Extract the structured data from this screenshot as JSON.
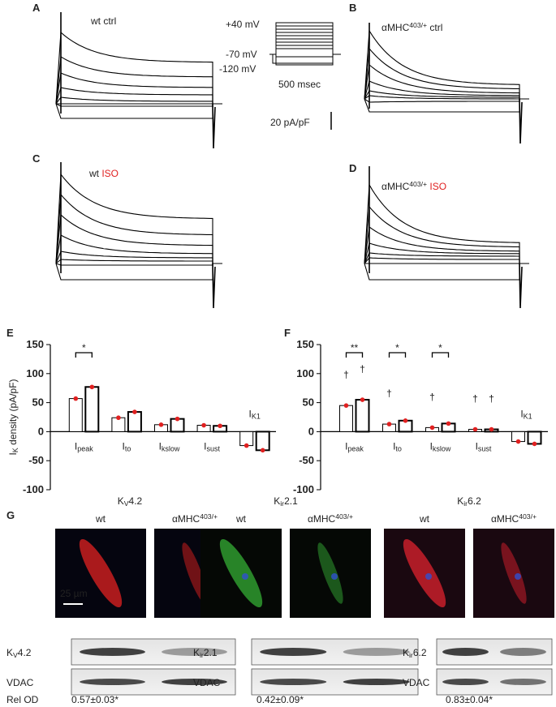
{
  "panel_a": {
    "letter": "A",
    "label": [
      "wt ctrl"
    ]
  },
  "panel_b": {
    "letter": "B",
    "label": [
      "αMHC",
      "403/+",
      " ctrl"
    ]
  },
  "panel_c": {
    "letter": "C",
    "label": [
      "wt ",
      "ISO"
    ]
  },
  "panel_d": {
    "letter": "D",
    "label": [
      "αMHC",
      "403/+",
      " ISO"
    ]
  },
  "protocol": {
    "top": "+40 mV",
    "hold": "-70 mV",
    "bottom": "-120 mV",
    "duration": "500 msec",
    "scale": "20 pA/pF"
  },
  "chart_data": [
    {
      "type": "bar",
      "letter": "E",
      "ylabel": "IK density (pA/pF)",
      "categories": [
        "Ipeak",
        "Ito",
        "Ikslow",
        "Isust",
        "IK1"
      ],
      "series": [
        {
          "color": "#ffffff",
          "values": [
            57,
            24,
            12,
            11,
            -24
          ]
        },
        {
          "color": "#ffffff",
          "values": [
            77,
            34,
            22,
            10,
            -32
          ]
        }
      ],
      "ylim": [
        -100,
        150
      ],
      "yticks": [
        -100,
        -50,
        0,
        50,
        100,
        150
      ],
      "brackets": [
        {
          "text": "*",
          "category": 0
        }
      ],
      "daggers": []
    },
    {
      "type": "bar",
      "letter": "F",
      "categories": [
        "Ipeak",
        "Ito",
        "Ikslow",
        "Isust",
        "IK1"
      ],
      "series": [
        {
          "color": "#ffffff",
          "values": [
            45,
            13,
            7,
            4,
            -17
          ]
        },
        {
          "color": "#ffffff",
          "values": [
            55,
            19,
            14,
            4,
            -21
          ]
        }
      ],
      "ylim": [
        -100,
        150
      ],
      "yticks": [
        -100,
        -50,
        0,
        50,
        100,
        150
      ],
      "brackets": [
        {
          "text": "**",
          "category": 0
        },
        {
          "text": "*",
          "category": 1
        },
        {
          "text": "*",
          "category": 2
        }
      ],
      "daggers": [
        {
          "text": "†",
          "category": 0,
          "series": 0
        },
        {
          "text": "†",
          "category": 0,
          "series": 1
        },
        {
          "text": "†",
          "category": 1,
          "series": 0
        },
        {
          "text": "†",
          "category": 2,
          "series": 0
        },
        {
          "text": "†",
          "category": 3,
          "series": 0
        },
        {
          "text": "†",
          "category": 3,
          "series": 1
        }
      ]
    }
  ],
  "panel_g": {
    "letter": "G",
    "scale_bar": "25 µm",
    "rel_od_label": "Rel OD",
    "blots": [
      {
        "title": [
          "K",
          "V",
          "4.2"
        ],
        "wt": "wt",
        "mutant": [
          "αMHC",
          "403/+"
        ],
        "band": [
          "K",
          "V",
          "4.2"
        ],
        "control": "VDAC",
        "rel_od": "0.57±0.03*"
      },
      {
        "title": [
          "K",
          "ir",
          "2.1"
        ],
        "wt": "wt",
        "mutant": [
          "αMHC",
          "403/+"
        ],
        "band": [
          "K",
          "ir",
          "2.1"
        ],
        "control": "VDAC",
        "rel_od": "0.42±0.09*"
      },
      {
        "title": [
          "K",
          "ir",
          "6.2"
        ],
        "wt": "wt",
        "mutant": [
          "αMHC",
          "403/+"
        ],
        "band": [
          "K",
          "ir",
          "6.2"
        ],
        "control": "VDAC",
        "rel_od": "0.83±0.04*"
      }
    ]
  }
}
